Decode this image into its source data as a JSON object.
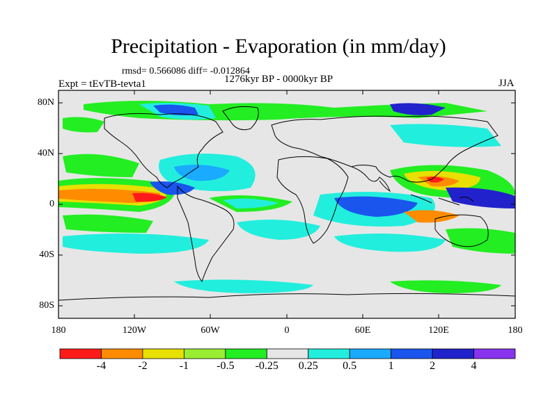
{
  "map": {
    "title": "Precipitation - Evaporation (in mm/day)",
    "stats": "rmsd= 0.566086  diff= -0.012864",
    "period": "1276kyr BP - 0000kyr BP",
    "experiment": "Expt = tEvTB-tevta1",
    "season": "JJA",
    "lat_labels": [
      "80N",
      "40N",
      "0",
      "40S",
      "80S"
    ],
    "lon_labels": [
      "180",
      "120W",
      "60W",
      "0",
      "60E",
      "120E",
      "180"
    ],
    "background_color": "#e6e6e6",
    "coastline_color": "#000000"
  },
  "colorbar": {
    "colors": [
      "#ff1a1a",
      "#ff8c00",
      "#e8e000",
      "#99ee33",
      "#22ee22",
      "#e6e6e6",
      "#22eedd",
      "#1aaaff",
      "#1a55ee",
      "#2222cc",
      "#8833ee"
    ],
    "labels": [
      "-4",
      "-2",
      "-1",
      "-0.5",
      "-0.25",
      "0.25",
      "0.5",
      "1",
      "2",
      "4"
    ]
  }
}
